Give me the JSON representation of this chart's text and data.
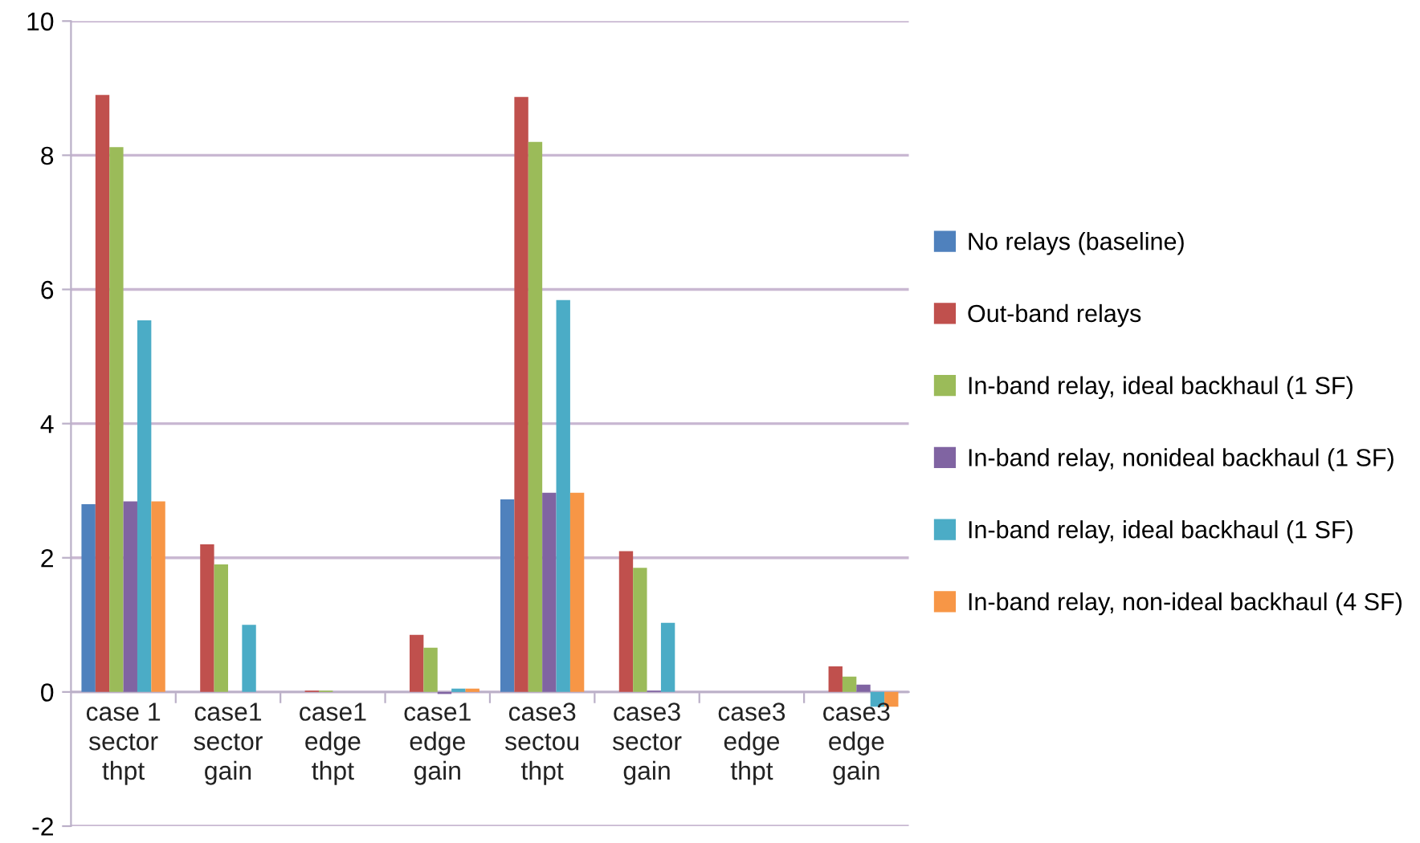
{
  "chart_data": {
    "type": "bar",
    "categories": [
      "case 1\nsector\nthpt",
      "case1\nsector\ngain",
      "case1\nedge\nthpt",
      "case1\nedge\ngain",
      "case3\nsectou\nthpt",
      "case3\nsector\ngain",
      "case3\nedge\nthpt",
      "case3\nedge\ngain"
    ],
    "series": [
      {
        "name": "No relays (baseline)",
        "color": "#4f81bd",
        "values": [
          2.8,
          0,
          0,
          0,
          2.87,
          0,
          0,
          0
        ]
      },
      {
        "name": "Out-band relays",
        "color": "#c0504d",
        "values": [
          8.9,
          2.2,
          0.02,
          0.85,
          8.87,
          2.1,
          0,
          0.38
        ]
      },
      {
        "name": "In-band relay, ideal backhaul (1 SF)",
        "color": "#9bbb59",
        "values": [
          8.12,
          1.9,
          0.02,
          0.66,
          8.2,
          1.85,
          0,
          0.23
        ]
      },
      {
        "name": "In-band relay, nonideal backhaul (1 SF)",
        "color": "#8064a2",
        "values": [
          2.84,
          0,
          0,
          -0.03,
          2.97,
          0.02,
          0,
          0.11
        ]
      },
      {
        "name": "In-band relay, ideal backhaul (1 SF)",
        "color": "#4bacc6",
        "values": [
          5.54,
          1.0,
          0,
          0.05,
          5.84,
          1.03,
          0,
          -0.22
        ]
      },
      {
        "name": "In-band relay, non-ideal backhaul (4 SF)",
        "color": "#f79646",
        "values": [
          2.84,
          0,
          0,
          0.05,
          2.97,
          0,
          0,
          -0.22
        ]
      }
    ],
    "ylim": [
      -2,
      10
    ],
    "yticks": [
      -2,
      0,
      2,
      4,
      6,
      8,
      10
    ],
    "grid": "y",
    "legend": "right"
  }
}
